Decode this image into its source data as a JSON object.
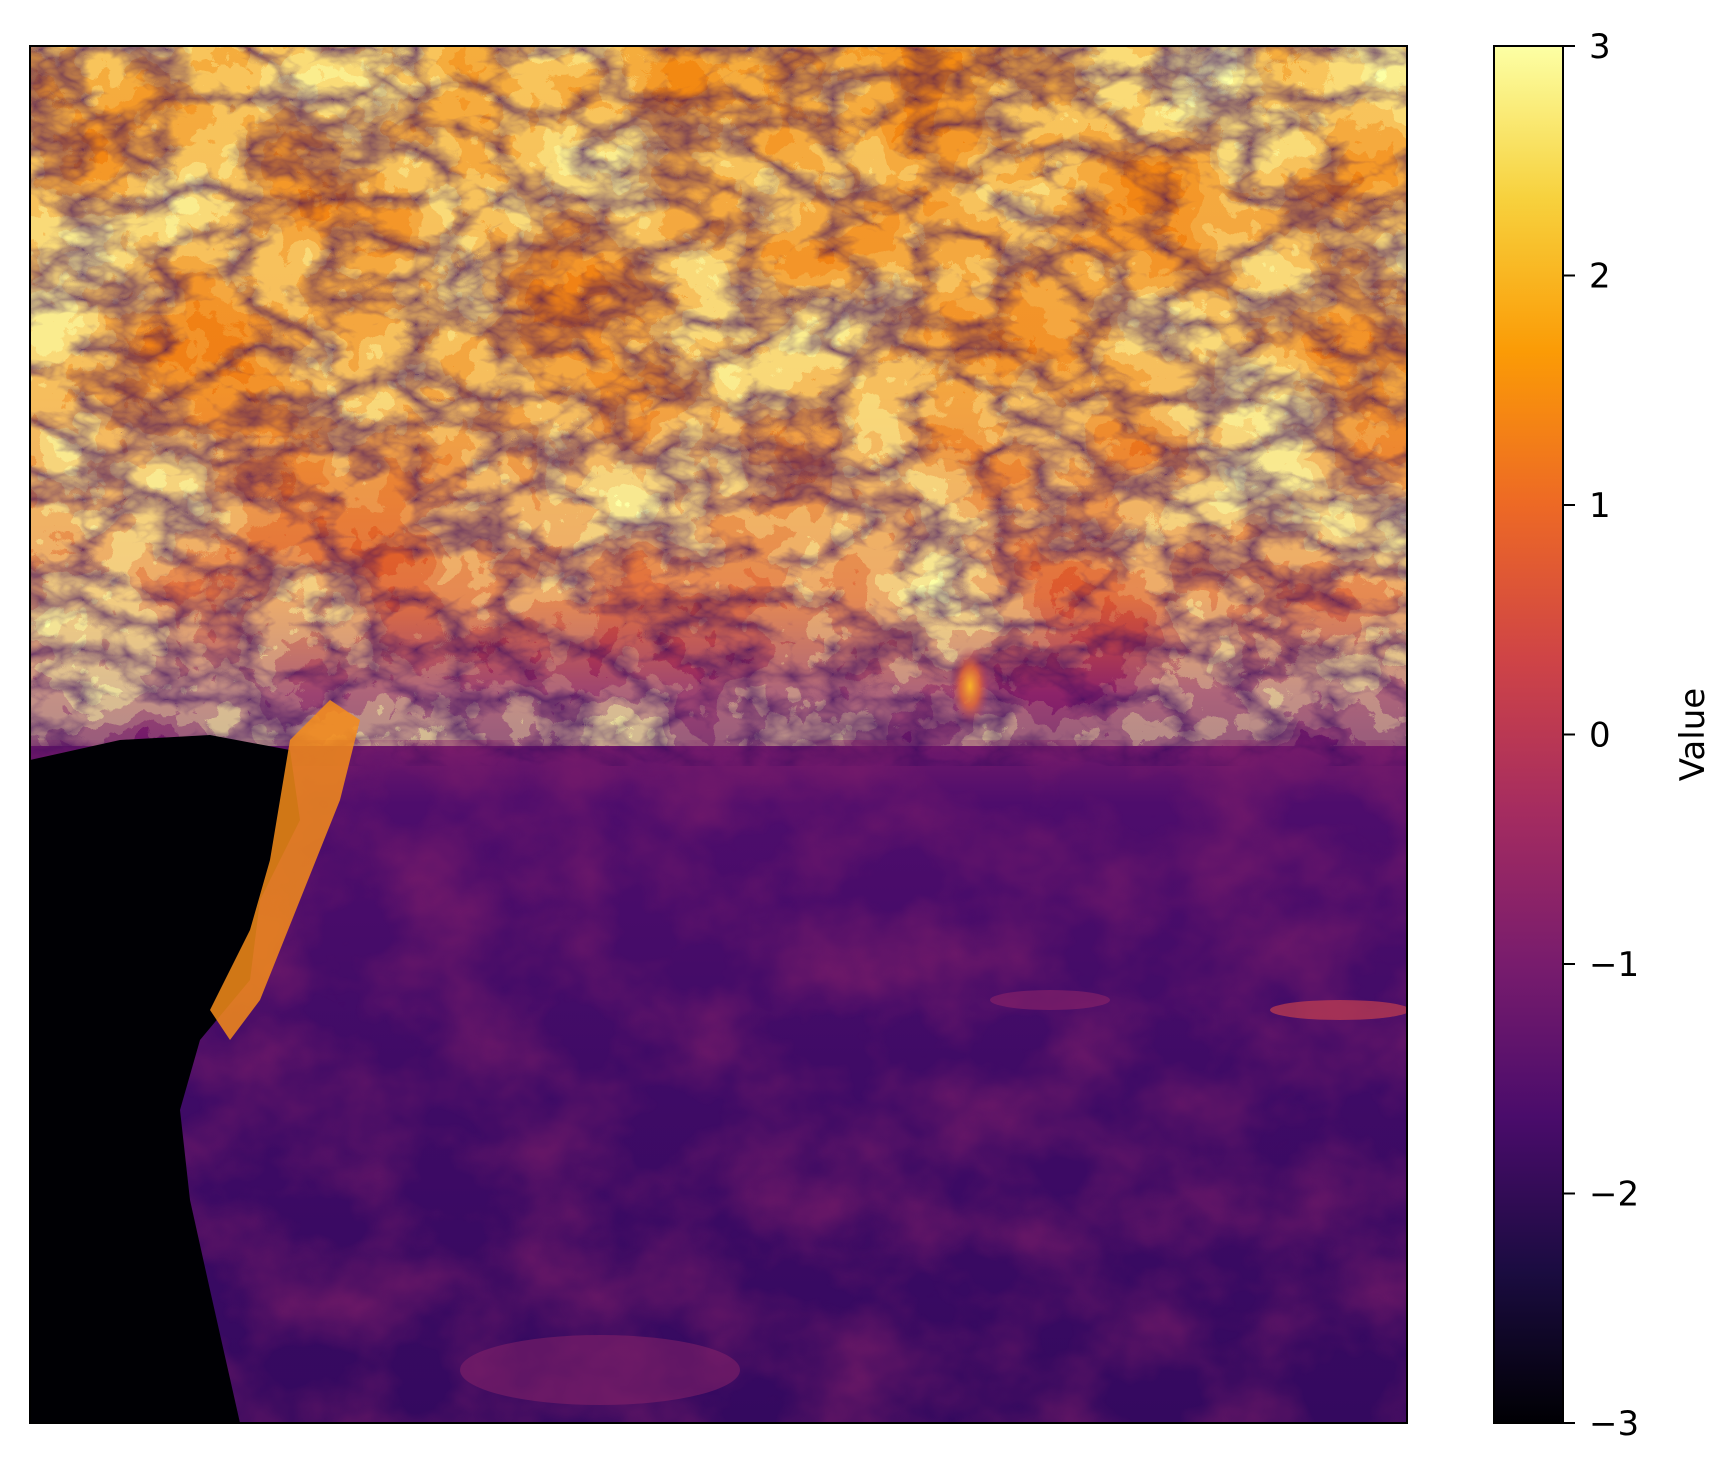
{
  "chart_data": {
    "type": "heatmap",
    "colormap": "inferno",
    "xticks_shown": false,
    "yticks_shown": false,
    "grid": false,
    "colorbar": {
      "label": "Value",
      "vmin": -3,
      "vmax": 3,
      "ticks": [
        3,
        2,
        1,
        0,
        -1,
        -2,
        -3
      ],
      "tick_labels": [
        "3",
        "2",
        "1",
        "0",
        "−1",
        "−2",
        "−3"
      ],
      "placement": "right"
    },
    "colors": {
      "inferno": [
        "#000004",
        "#1b0c41",
        "#4a0c6b",
        "#781c6d",
        "#a52c60",
        "#cf4446",
        "#ed6925",
        "#fb9b06",
        "#f7d13d",
        "#fcffa4"
      ]
    }
  }
}
